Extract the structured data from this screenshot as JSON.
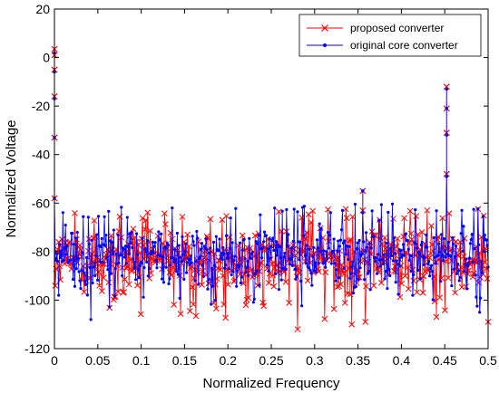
{
  "chart_data": {
    "type": "line",
    "title": "",
    "xlabel": "Normalized Frequency",
    "ylabel": "Normalized Voltage",
    "xlim": [
      0,
      0.5
    ],
    "ylim": [
      -120,
      20
    ],
    "x_ticks": [
      "0",
      "0.05",
      "0.1",
      "0.15",
      "0.2",
      "0.25",
      "0.3",
      "0.35",
      "0.4",
      "0.45",
      "0.5"
    ],
    "y_ticks": [
      "20",
      "0",
      "-20",
      "-40",
      "-60",
      "-80",
      "-100",
      "-120"
    ],
    "grid": false,
    "legend_position": "top-right",
    "series": [
      {
        "name": "proposed converter",
        "color": "#ff0000",
        "marker": "x",
        "noise_floor_mean": -83,
        "noise_floor_range": [
          -112,
          -62
        ],
        "peaks": [
          {
            "x": 0.0,
            "values": [
              3.5,
              1,
              -5,
              -16,
              -33,
              -58
            ]
          },
          {
            "x": 0.355,
            "values": [
              -55,
              -63
            ]
          },
          {
            "x": 0.452,
            "values": [
              -12,
              -21,
              -31,
              -48
            ]
          }
        ],
        "notable_points": [
          {
            "x": 0.28,
            "y": -112
          },
          {
            "x": 0.343,
            "y": -110
          },
          {
            "x": 0.358,
            "y": -109
          },
          {
            "x": 0.43,
            "y": -63
          },
          {
            "x": 0.5,
            "y": -109
          }
        ]
      },
      {
        "name": "original core converter",
        "color": "#0000ff",
        "marker": ".",
        "noise_floor_mean": -82,
        "noise_floor_range": [
          -107,
          -60
        ],
        "peaks": [
          {
            "x": 0.0,
            "values": [
              2,
              -6,
              -17,
              -33,
              -58
            ]
          },
          {
            "x": 0.355,
            "values": [
              -55,
              -64
            ]
          },
          {
            "x": 0.452,
            "values": [
              -13,
              -21,
              -32,
              -49
            ]
          }
        ],
        "notable_points": [
          {
            "x": 0.005,
            "y": -98
          },
          {
            "x": 0.042,
            "y": -108
          },
          {
            "x": 0.49,
            "y": -105
          }
        ]
      }
    ]
  }
}
